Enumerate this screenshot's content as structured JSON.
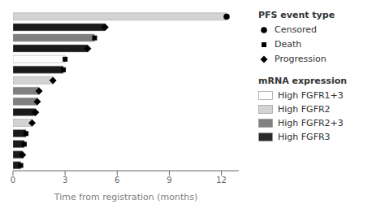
{
  "chart_data": {
    "type": "bar",
    "orientation": "horizontal",
    "categories": [
      null,
      null,
      null,
      null,
      null,
      null,
      null,
      null,
      null,
      null,
      null,
      null,
      null,
      null,
      null
    ],
    "values": [
      12.3,
      5.3,
      4.7,
      4.3,
      3.0,
      2.9,
      2.3,
      1.5,
      1.4,
      1.3,
      1.1,
      0.75,
      0.65,
      0.55,
      0.45
    ],
    "colors": [
      "#d3d3d3",
      "#1a1a1a",
      "#808080",
      "#1a1a1a",
      "#ffffff",
      "#1a1a1a",
      "#d3d3d3",
      "#808080",
      "#808080",
      "#1a1a1a",
      "#d3d3d3",
      "#1a1a1a",
      "#1a1a1a",
      "#1a1a1a",
      "#1a1a1a"
    ],
    "xlabel": "Time from registration (months)",
    "xlim": [
      0,
      13.0
    ],
    "xticks": [
      0,
      3,
      6,
      9,
      12
    ],
    "grid": false,
    "tick_labels": "x",
    "series": [
      {
        "name": "Censored",
        "type": "scatter",
        "marker": "circle",
        "color": "#000000",
        "values": [
          12.3,
          null,
          null,
          null,
          null,
          null,
          null,
          null,
          null,
          null,
          null,
          null,
          null,
          null,
          null
        ]
      },
      {
        "name": "Death",
        "type": "scatter",
        "marker": "square",
        "color": "#000000",
        "values": [
          null,
          null,
          4.7,
          null,
          3.0,
          2.9,
          null,
          null,
          null,
          null,
          null,
          0.75,
          0.65,
          null,
          0.45
        ]
      },
      {
        "name": "Progression",
        "type": "scatter",
        "marker": "diamond",
        "color": "#000000",
        "values": [
          null,
          5.3,
          null,
          4.3,
          null,
          null,
          2.3,
          1.5,
          1.4,
          1.3,
          1.1,
          null,
          null,
          0.55,
          null
        ]
      }
    ],
    "legends": [
      {
        "title": "PFS event type"
      },
      {
        "title": "mRNA expression",
        "labels": [
          "High FGFR1+3",
          "High FGFR2",
          "High FGFR2+3",
          "High FGFR3"
        ],
        "colors": [
          "#ffffff",
          "#d3d3d3",
          "#808080",
          "#2a2a2a"
        ]
      }
    ]
  }
}
